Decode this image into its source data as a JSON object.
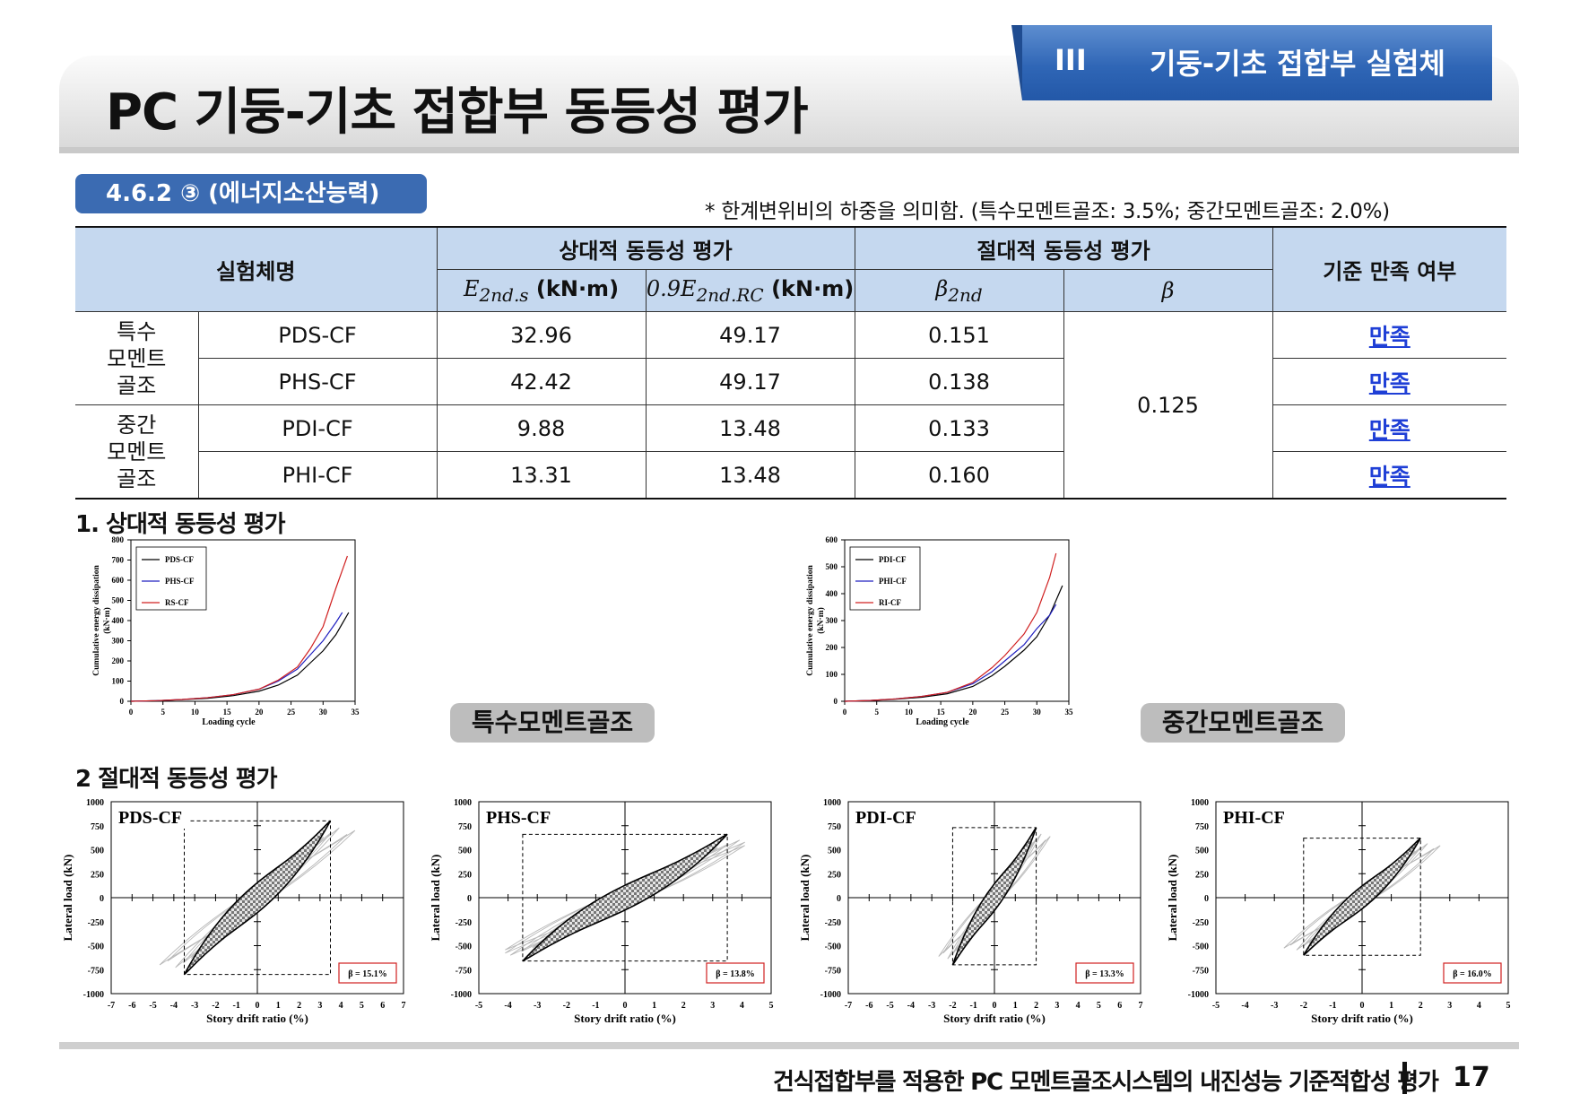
{
  "header": {
    "title": "PC 기둥-기초 접합부 동등성 평가",
    "chapter_number": "III",
    "chapter_title": "기둥-기초 접합부 실험체"
  },
  "section": {
    "label": "4.6.2 ③ (에너지소산능력)",
    "note": "* 한계변위비의 하중을 의미함. (특수모멘트골조: 3.5%; 중간모멘트골조: 2.0%)"
  },
  "table": {
    "headers": {
      "specimen": "실험체명",
      "relative": "상대적 동등성 평가",
      "absolute": "절대적 동등성 평가",
      "criteria": "기준 만족 여부",
      "e2nds_symbol": "E",
      "e2nds_sub": "2nd.s",
      "e2nds_unit": "(kN·m)",
      "e2ndrc_symbol": "0.9E",
      "e2ndrc_sub": "2nd.RC",
      "e2ndrc_unit": "(kN·m)",
      "beta2nd_symbol": "β",
      "beta2nd_sub": "2nd",
      "beta_symbol": "β"
    },
    "groups": [
      {
        "lines": [
          "특수",
          "모멘트",
          "골조"
        ]
      },
      {
        "lines": [
          "중간",
          "모멘트",
          "골조"
        ]
      }
    ],
    "rows": [
      {
        "name": "PDS-CF",
        "e2nds": "32.96",
        "e2ndrc": "49.17",
        "beta2nd": "0.151",
        "ok": "만족"
      },
      {
        "name": "PHS-CF",
        "e2nds": "42.42",
        "e2ndrc": "49.17",
        "beta2nd": "0.138",
        "ok": "만족"
      },
      {
        "name": "PDI-CF",
        "e2nds": "9.88",
        "e2ndrc": "13.48",
        "beta2nd": "0.133",
        "ok": "만족"
      },
      {
        "name": "PHI-CF",
        "e2nds": "13.31",
        "e2ndrc": "13.48",
        "beta2nd": "0.160",
        "ok": "만족"
      }
    ],
    "beta": "0.125"
  },
  "subsections": {
    "relative": "1. 상대적 동등성 평가",
    "absolute": "2 절대적 동등성 평가",
    "special_label": "특수모멘트골조",
    "intermediate_label": "중간모멘트골조"
  },
  "chart_data": [
    {
      "type": "line",
      "title": "",
      "xlabel": "Loading cycle",
      "ylabel": "Cumulative energy dissipation (kN·m)",
      "xlim": [
        0,
        35
      ],
      "ylim": [
        0,
        800
      ],
      "xticks": [
        0,
        5,
        10,
        15,
        20,
        25,
        30,
        35
      ],
      "yticks": [
        0,
        100,
        200,
        300,
        400,
        500,
        600,
        700,
        800
      ],
      "legend": "top-left",
      "series": [
        {
          "name": "PDS-CF",
          "color": "#000000",
          "x": [
            0,
            4,
            8,
            12,
            16,
            20,
            23,
            26,
            28,
            30,
            32,
            34
          ],
          "y": [
            0,
            3,
            8,
            15,
            28,
            50,
            80,
            130,
            190,
            250,
            330,
            440
          ]
        },
        {
          "name": "PHS-CF",
          "color": "#2020c0",
          "x": [
            0,
            4,
            8,
            12,
            16,
            20,
            23,
            26,
            28,
            30,
            32,
            33
          ],
          "y": [
            0,
            3,
            9,
            18,
            33,
            60,
            100,
            160,
            230,
            300,
            390,
            440
          ]
        },
        {
          "name": "RS-CF",
          "color": "#d02020",
          "x": [
            0,
            4,
            8,
            12,
            16,
            20,
            23,
            26,
            28,
            30,
            32,
            33.8
          ],
          "y": [
            0,
            3,
            9,
            18,
            33,
            60,
            105,
            170,
            260,
            370,
            560,
            720
          ]
        }
      ]
    },
    {
      "type": "line",
      "title": "",
      "xlabel": "Loading cycle",
      "ylabel": "Cumulative energy dissipation (kN·m)",
      "xlim": [
        0,
        35
      ],
      "ylim": [
        0,
        600
      ],
      "xticks": [
        0,
        5,
        10,
        15,
        20,
        25,
        30,
        35
      ],
      "yticks": [
        0,
        100,
        200,
        300,
        400,
        500,
        600
      ],
      "legend": "top-left",
      "series": [
        {
          "name": "PDI-CF",
          "color": "#000000",
          "x": [
            0,
            4,
            8,
            12,
            16,
            20,
            23,
            25,
            28,
            30,
            32,
            34
          ],
          "y": [
            0,
            3,
            8,
            15,
            28,
            55,
            95,
            130,
            190,
            240,
            320,
            430
          ]
        },
        {
          "name": "PHI-CF",
          "color": "#2020c0",
          "x": [
            0,
            4,
            8,
            12,
            16,
            20,
            23,
            25,
            28,
            30,
            32,
            33
          ],
          "y": [
            0,
            3,
            9,
            18,
            33,
            65,
            110,
            150,
            210,
            270,
            320,
            360
          ]
        },
        {
          "name": "RI-CF",
          "color": "#d02020",
          "x": [
            0,
            4,
            8,
            12,
            16,
            20,
            23,
            25,
            28,
            30,
            32,
            33
          ],
          "y": [
            0,
            3,
            9,
            18,
            33,
            70,
            125,
            170,
            250,
            330,
            460,
            550
          ]
        }
      ]
    },
    {
      "type": "line",
      "title": "PDS-CF",
      "xlabel": "Story drift ratio (%)",
      "ylabel": "Lateral load (kN)",
      "xlim": [
        -7,
        7
      ],
      "ylim": [
        -1000,
        1000
      ],
      "xticks": [
        -7,
        -6,
        -5,
        -4,
        -3,
        -2,
        -1,
        0,
        1,
        2,
        3,
        4,
        5,
        6,
        7
      ],
      "yticks": [
        1000,
        750,
        500,
        250,
        0,
        -250,
        -500,
        -750,
        -1000
      ],
      "annotation": "β = 15.1%",
      "series": [
        {
          "name": "",
          "color": "#000000",
          "x": [
            -3.5,
            3.5
          ],
          "y": [
            -800,
            800
          ]
        }
      ]
    },
    {
      "type": "line",
      "title": "PHS-CF",
      "xlabel": "Story drift ratio (%)",
      "ylabel": "Lateral load (kN)",
      "xlim": [
        -5,
        5
      ],
      "ylim": [
        -1000,
        1000
      ],
      "xticks": [
        -5,
        -4,
        -3,
        -2,
        -1,
        0,
        1,
        2,
        3,
        4,
        5
      ],
      "yticks": [
        1000,
        750,
        500,
        250,
        0,
        -250,
        -500,
        -750,
        -1000
      ],
      "annotation": "β = 13.8%",
      "series": [
        {
          "name": "",
          "color": "#000000",
          "x": [
            -3.5,
            3.5
          ],
          "y": [
            -660,
            660
          ]
        }
      ]
    },
    {
      "type": "line",
      "title": "PDI-CF",
      "xlabel": "Story drift ratio (%)",
      "ylabel": "Lateral load (kN)",
      "xlim": [
        -7,
        7
      ],
      "ylim": [
        -1000,
        1000
      ],
      "xticks": [
        -7,
        -6,
        -5,
        -4,
        -3,
        -2,
        -1,
        0,
        1,
        2,
        3,
        4,
        5,
        6,
        7
      ],
      "yticks": [
        1000,
        750,
        500,
        250,
        0,
        -250,
        -500,
        -750,
        -1000
      ],
      "annotation": "β = 13.3%",
      "series": [
        {
          "name": "",
          "color": "#000000",
          "x": [
            -2,
            2
          ],
          "y": [
            -700,
            730
          ]
        }
      ]
    },
    {
      "type": "line",
      "title": "PHI-CF",
      "xlabel": "Story drift ratio (%)",
      "ylabel": "Lateral load (kN)",
      "xlim": [
        -5,
        5
      ],
      "ylim": [
        -1000,
        1000
      ],
      "xticks": [
        -5,
        -4,
        -3,
        -2,
        -1,
        0,
        1,
        2,
        3,
        4,
        5
      ],
      "yticks": [
        1000,
        750,
        500,
        250,
        0,
        -250,
        -500,
        -750,
        -1000
      ],
      "annotation": "β = 16.0%",
      "series": [
        {
          "name": "",
          "color": "#000000",
          "x": [
            -2,
            2
          ],
          "y": [
            -600,
            620
          ]
        }
      ]
    }
  ],
  "footer": {
    "text": "건식접합부를 적용한 PC 모멘트골조시스템의 내진성능 기준적합성 평가",
    "page": "17"
  }
}
